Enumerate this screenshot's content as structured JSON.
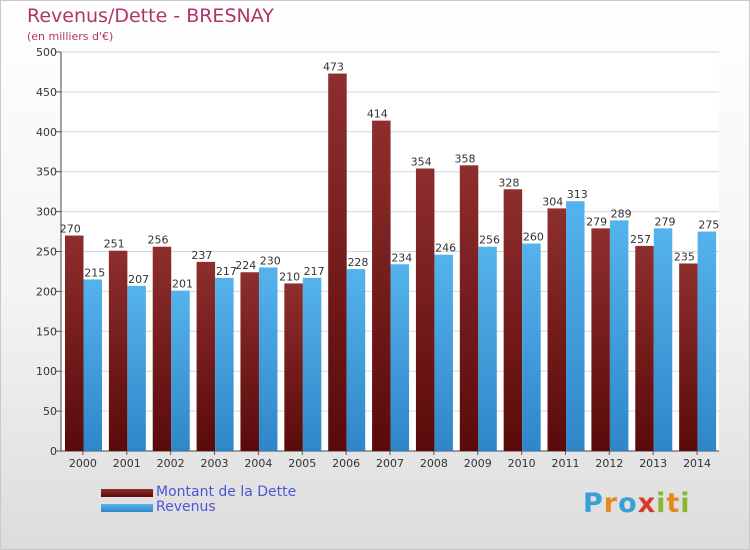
{
  "title": "Revenus/Dette - BRESNAY",
  "subtitle": "(en milliers d'€)",
  "legend": {
    "debt_label": "Montant de la Dette",
    "revenue_label": "Revenus"
  },
  "logo": {
    "letters": [
      "P",
      "r",
      "o",
      "x",
      "i",
      "t",
      "i"
    ],
    "colors": [
      "#39a0d6",
      "#e8881e",
      "#39a0d6",
      "#d63a2a",
      "#89b82d",
      "#e8881e",
      "#89b82d"
    ]
  },
  "chart_data": {
    "type": "bar",
    "title": "Revenus/Dette - BRESNAY",
    "ylabel": "(en milliers d'€)",
    "categories": [
      "2000",
      "2001",
      "2002",
      "2003",
      "2004",
      "2005",
      "2006",
      "2007",
      "2008",
      "2009",
      "2010",
      "2011",
      "2012",
      "2013",
      "2014"
    ],
    "ylim": [
      0,
      500
    ],
    "yticks": [
      0,
      50,
      100,
      150,
      200,
      250,
      300,
      350,
      400,
      450,
      500
    ],
    "grid": true,
    "series": [
      {
        "name": "Montant de la Dette",
        "color": "#7a2020",
        "values": [
          270,
          251,
          256,
          237,
          224,
          210,
          473,
          414,
          354,
          358,
          328,
          304,
          279,
          257,
          235
        ]
      },
      {
        "name": "Revenus",
        "color": "#4aa6e0",
        "values": [
          215,
          207,
          201,
          217,
          230,
          217,
          228,
          234,
          246,
          256,
          260,
          313,
          289,
          279,
          275
        ]
      }
    ]
  }
}
